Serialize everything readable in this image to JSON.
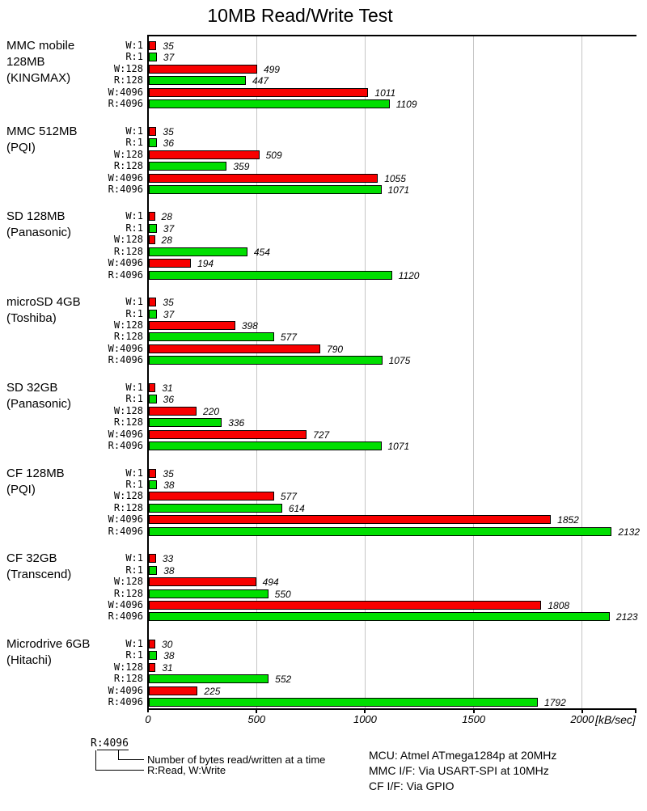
{
  "title": "10MB Read/Write Test",
  "chart_data": {
    "type": "bar",
    "orientation": "horizontal",
    "title": "10MB Read/Write Test",
    "unit_label": "[kB/sec]",
    "x_ticks": [
      0,
      500,
      1000,
      1500,
      2000
    ],
    "xlim": [
      0,
      2250
    ],
    "grid": "vertical",
    "row_labels": [
      "W:1",
      "R:1",
      "W:128",
      "R:128",
      "W:4096",
      "R:4096"
    ],
    "colors": {
      "write": "#f80000",
      "read": "#00df00"
    },
    "groups": [
      {
        "label_lines": [
          "MMC mobile",
          "128MB",
          "(KINGMAX)"
        ],
        "values": [
          35,
          37,
          499,
          447,
          1011,
          1109
        ]
      },
      {
        "label_lines": [
          "MMC 512MB",
          "(PQI)"
        ],
        "values": [
          35,
          36,
          509,
          359,
          1055,
          1071
        ]
      },
      {
        "label_lines": [
          "SD 128MB",
          "(Panasonic)"
        ],
        "values": [
          28,
          37,
          28,
          454,
          194,
          1120
        ]
      },
      {
        "label_lines": [
          "microSD 4GB",
          "(Toshiba)"
        ],
        "values": [
          35,
          37,
          398,
          577,
          790,
          1075
        ]
      },
      {
        "label_lines": [
          "SD 32GB",
          "(Panasonic)"
        ],
        "values": [
          31,
          36,
          220,
          336,
          727,
          1071
        ]
      },
      {
        "label_lines": [
          "CF 128MB",
          "(PQI)"
        ],
        "values": [
          35,
          38,
          577,
          614,
          1852,
          2132
        ]
      },
      {
        "label_lines": [
          "CF 32GB",
          "(Transcend)"
        ],
        "values": [
          33,
          38,
          494,
          550,
          1808,
          2123
        ]
      },
      {
        "label_lines": [
          "Microdrive 6GB",
          "(Hitachi)"
        ],
        "values": [
          30,
          38,
          31,
          552,
          225,
          1792
        ]
      }
    ]
  },
  "legend": {
    "sample_prefix": "R",
    "sample_suffix": ":4096",
    "note_bytes": "Number of bytes read/written at a time",
    "note_rw": "R:Read, W:Write"
  },
  "footer_info": {
    "lines": [
      "MCU: Atmel ATmega1284p at 20MHz",
      "MMC I/F: Via USART-SPI at 10MHz",
      "CF I/F: Via GPIO"
    ]
  }
}
